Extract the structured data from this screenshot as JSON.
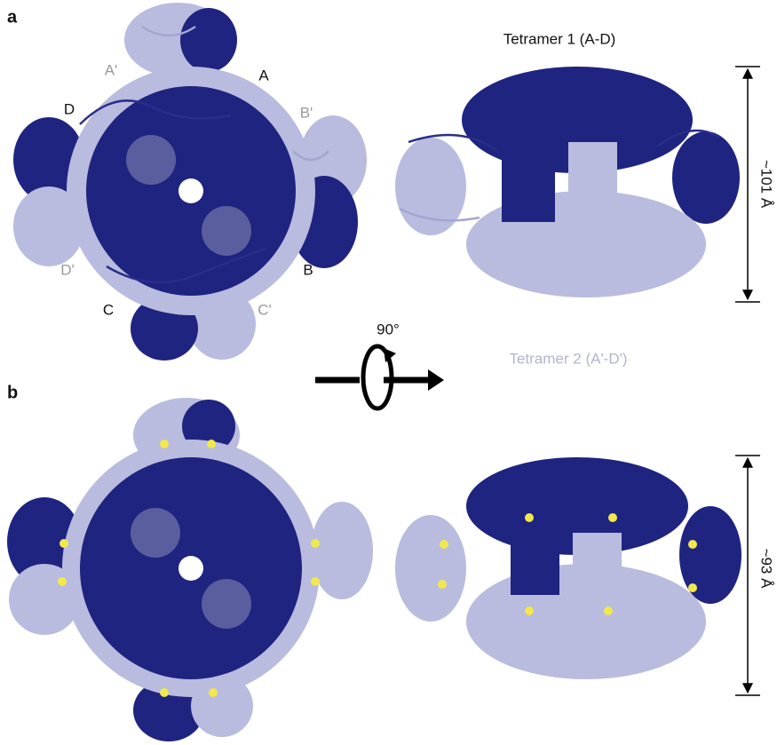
{
  "panels": [
    {
      "label": "a",
      "chain_labels": [
        "A'",
        "A",
        "D",
        "B'",
        "D'",
        "B",
        "C",
        "C'"
      ],
      "tetramer_1": "Tetramer 1 (A-D)",
      "tetramer_2": "Tetramer 2 (A'-D')",
      "dimension": "~101 Å"
    },
    {
      "label": "b",
      "dimension": "~93 Å"
    }
  ],
  "rotation": "90°"
}
